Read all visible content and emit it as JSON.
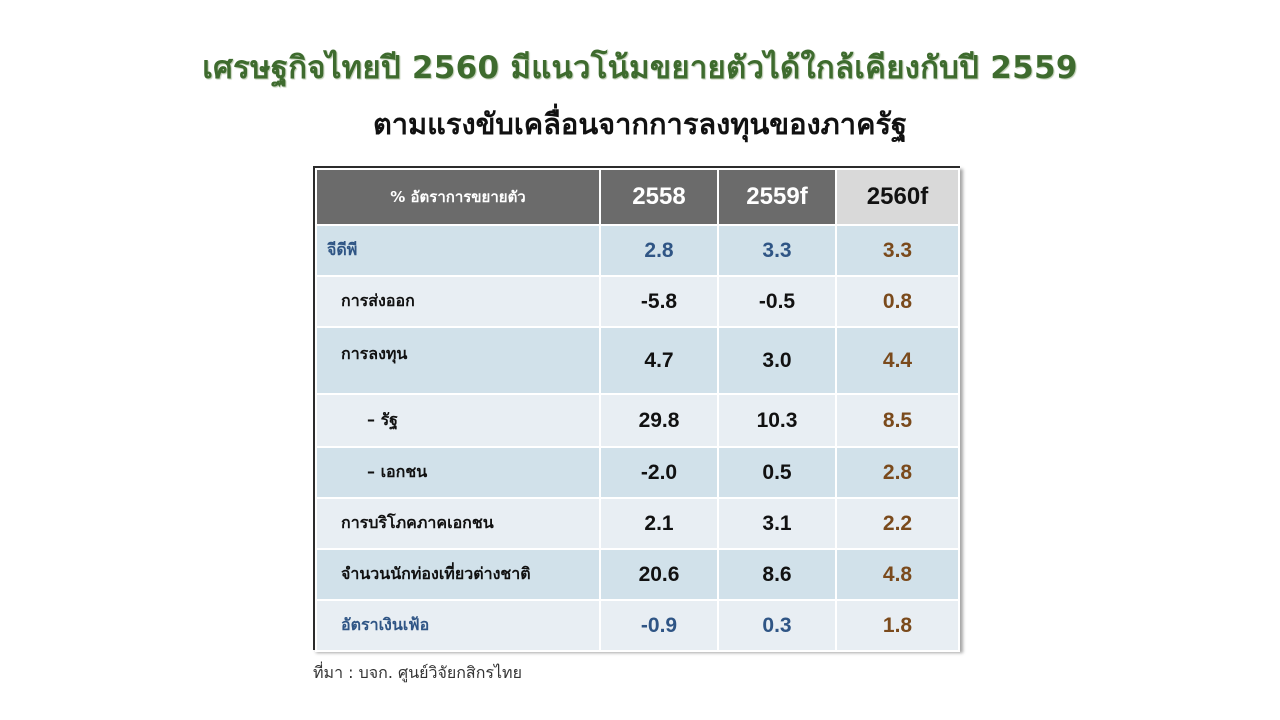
{
  "title_line1": "เศรษฐกิจไทยปี 2560 มีแนวโน้มขยายตัวได้ใกล้เคียงกับปี 2559",
  "title_line2": "ตามแรงขับเคลื่อนจากการลงทุนของภาครัฐ",
  "table": {
    "header": {
      "label": "% อัตราการขยายตัว",
      "col1": "2558",
      "col2": "2559f",
      "col3": "2560f"
    },
    "rows": [
      {
        "label": "จีดีพี",
        "v1": "2.8",
        "v2": "3.3",
        "v3": "3.3"
      },
      {
        "label": "การส่งออก",
        "v1": "-5.8",
        "v2": "-0.5",
        "v3": "0.8"
      },
      {
        "label": "การลงทุน",
        "v1": "4.7",
        "v2": "3.0",
        "v3": "4.4"
      },
      {
        "label": "– รัฐ",
        "v1": "29.8",
        "v2": "10.3",
        "v3": "8.5"
      },
      {
        "label": "– เอกชน",
        "v1": "-2.0",
        "v2": "0.5",
        "v3": "2.8"
      },
      {
        "label": "การบริโภคภาคเอกชน",
        "v1": "2.1",
        "v2": "3.1",
        "v3": "2.2"
      },
      {
        "label": "จำนวนนักท่องเที่ยวต่างชาติ",
        "v1": "20.6",
        "v2": "8.6",
        "v3": "4.8"
      },
      {
        "label": "อัตราเงินเฟ้อ",
        "v1": "-0.9",
        "v2": "0.3",
        "v3": "1.8"
      }
    ]
  },
  "source": "ที่มา : บจก. ศูนย์วิจัยกสิกรไทย",
  "colors": {
    "title_green": "#3e6b2e",
    "header_gray": "#6b6b6b",
    "row_dark": "#d1e1ea",
    "row_light": "#e8eef3",
    "accent_blue": "#2f5585",
    "accent_brown": "#7a4a1c"
  }
}
